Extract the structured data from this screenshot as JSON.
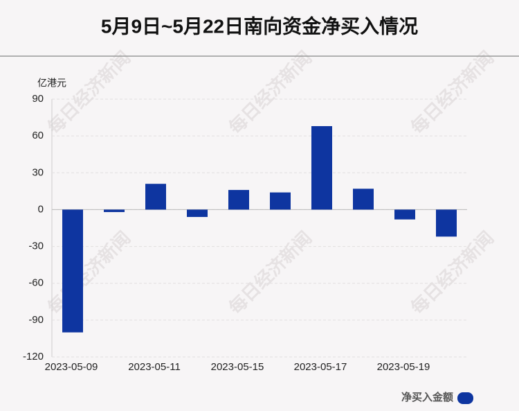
{
  "chart_data": {
    "type": "bar",
    "title": "5月9日~5月22日南向资金净买入情况",
    "y_label": "亿港元",
    "watermark": "每日经济新闻",
    "categories": [
      "2023-05-09",
      null,
      "2023-05-11",
      null,
      "2023-05-15",
      null,
      "2023-05-17",
      null,
      "2023-05-19",
      null
    ],
    "series": [
      {
        "name": "净买入金额",
        "color": "#0e35a0",
        "values": [
          -100,
          -2,
          21,
          -6,
          16,
          14,
          68,
          17,
          -8,
          -22
        ]
      }
    ],
    "ylim": [
      -120,
      90
    ],
    "yticks": [
      -120,
      -90,
      -60,
      -30,
      0,
      30,
      60,
      90
    ],
    "grid": true,
    "legend": "bottom-right"
  }
}
